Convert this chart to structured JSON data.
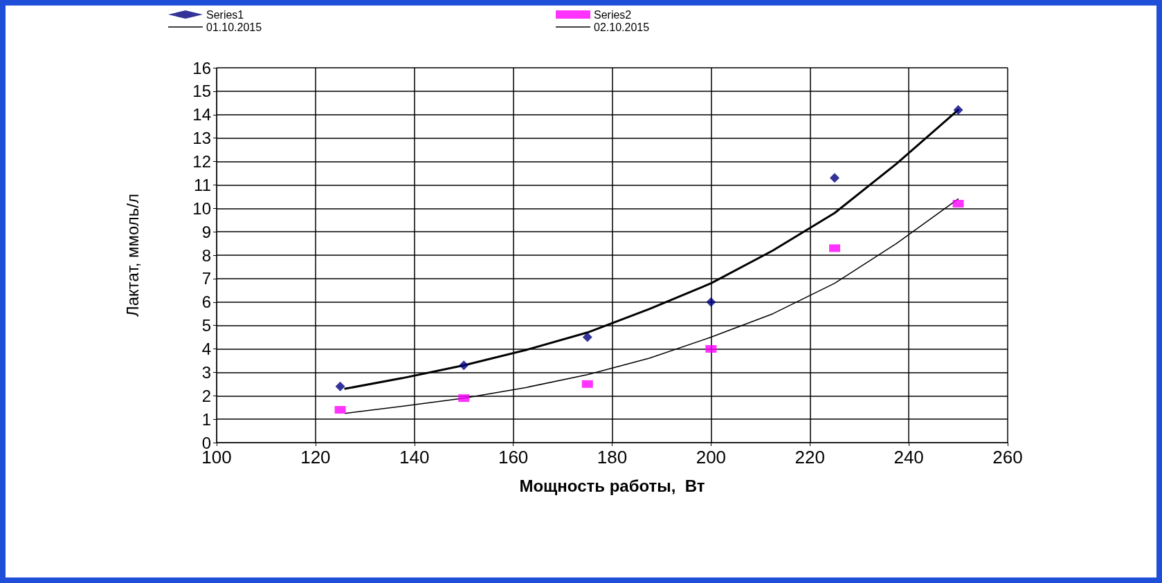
{
  "chart_data": {
    "type": "scatter",
    "xlabel": "Мощность работы,  Вт",
    "ylabel": "Лактат, ммоль/л",
    "xlim": [
      100,
      260
    ],
    "xticks": [
      100,
      120,
      140,
      160,
      180,
      200,
      220,
      240,
      260
    ],
    "ylim": [
      0,
      16
    ],
    "yticks": [
      0,
      1,
      2,
      3,
      4,
      5,
      6,
      7,
      8,
      9,
      10,
      11,
      12,
      13,
      14,
      15,
      16
    ],
    "grid": true,
    "legend": "top",
    "series": [
      {
        "name": "Series1",
        "marker": "diamond",
        "color": "#000080",
        "x": [
          125,
          150,
          175,
          200,
          225,
          250
        ],
        "values": [
          2.4,
          3.3,
          4.5,
          6.0,
          11.3,
          14.2
        ]
      },
      {
        "name": "Series2",
        "marker": "square",
        "color": "#ff00ff",
        "x": [
          125,
          150,
          175,
          200,
          225,
          250
        ],
        "values": [
          1.4,
          1.9,
          2.5,
          4.0,
          8.3,
          10.2
        ]
      },
      {
        "name": "01.10.2015",
        "type": "line",
        "marker": "none",
        "line_style": "solid",
        "color": "#000000",
        "x": [
          126,
          137.5,
          150,
          162.5,
          175,
          187.5,
          200,
          212.5,
          225,
          237.5,
          250
        ],
        "values": [
          2.3,
          2.75,
          3.3,
          3.95,
          4.7,
          5.7,
          6.8,
          8.2,
          9.8,
          11.9,
          14.2
        ]
      },
      {
        "name": "02.10.2015",
        "type": "line",
        "marker": "none",
        "line_style": "solid",
        "color": "#000000",
        "x": [
          126,
          137.5,
          150,
          162.5,
          175,
          187.5,
          200,
          212.5,
          225,
          237.5,
          250
        ],
        "values": [
          1.25,
          1.55,
          1.9,
          2.35,
          2.9,
          3.6,
          4.5,
          5.5,
          6.8,
          8.5,
          10.4
        ]
      }
    ]
  }
}
